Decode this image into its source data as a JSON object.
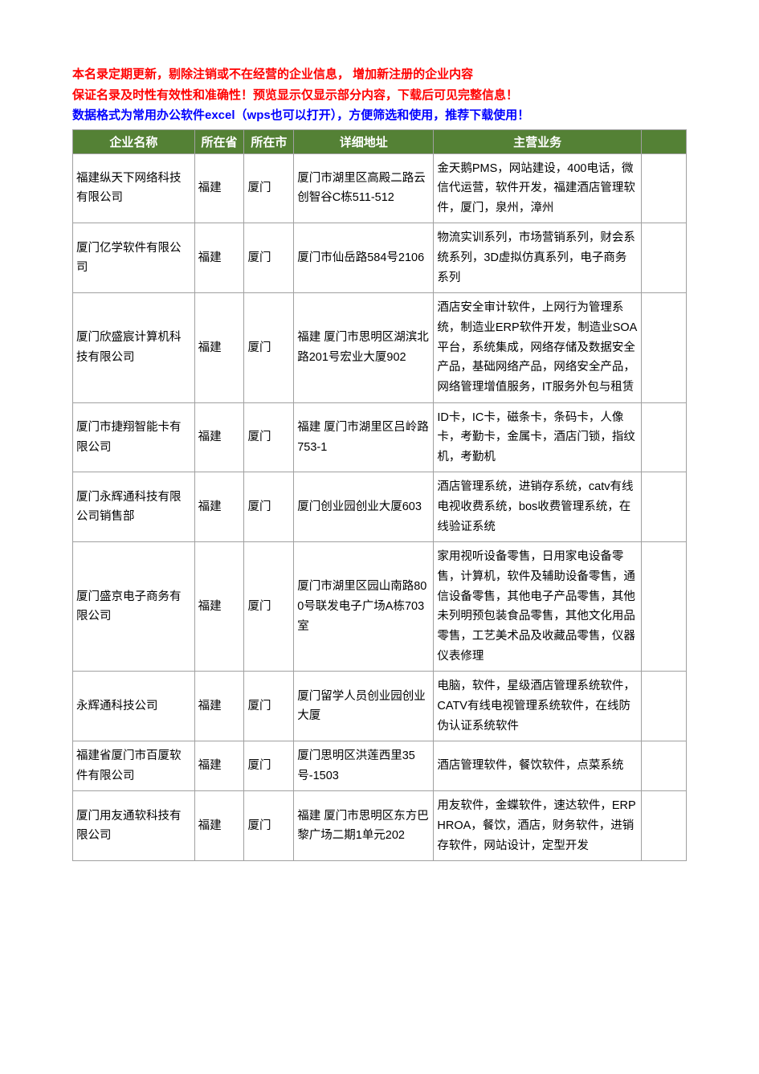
{
  "intro": {
    "line1": "本名录定期更新，剔除注销或不在经营的企业信息， 增加新注册的企业内容",
    "line2": "保证名录及时性有效性和准确性！预览显示仅显示部分内容，下载后可见完整信息！",
    "line3": "数据格式为常用办公软件excel（wps也可以打开），方便筛选和使用，推荐下载使用！"
  },
  "header_color": "#548135",
  "header_text_color": "#ffffff",
  "border_color": "#a0a0a0",
  "columns": [
    "企业名称",
    "所在省",
    "所在市",
    "详细地址",
    "主营业务",
    ""
  ],
  "rows": [
    {
      "name": "福建纵天下网络科技有限公司",
      "province": "福建",
      "city": "厦门",
      "address": "厦门市湖里区高殿二路云创智谷C栋511-512",
      "business": "金天鹅PMS，网站建设，400电话，微信代运营，软件开发，福建酒店管理软件，厦门，泉州，漳州"
    },
    {
      "name": "厦门亿学软件有限公司",
      "province": "福建",
      "city": "厦门",
      "address": "厦门市仙岳路584号2106",
      "business": "物流实训系列，市场营销系列，财会系统系列，3D虚拟仿真系列，电子商务系列"
    },
    {
      "name": "厦门欣盛宸计算机科技有限公司",
      "province": "福建",
      "city": "厦门",
      "address": "福建 厦门市思明区湖滨北路201号宏业大厦902",
      "business": "酒店安全审计软件，上网行为管理系统，制造业ERP软件开发，制造业SOA平台，系统集成，网络存储及数据安全产品，基础网络产品，网络安全产品，网络管理增值服务，IT服务外包与租赁"
    },
    {
      "name": "厦门市捷翔智能卡有限公司",
      "province": "福建",
      "city": "厦门",
      "address": "福建 厦门市湖里区吕岭路753-1",
      "business": "ID卡，IC卡，磁条卡，条码卡，人像卡，考勤卡，金属卡，酒店门锁，指纹机，考勤机"
    },
    {
      "name": "厦门永辉通科技有限公司销售部",
      "province": "福建",
      "city": "厦门",
      "address": "厦门创业园创业大厦603",
      "business": "酒店管理系统，进销存系统，catv有线电视收费系统，bos收费管理系统，在线验证系统"
    },
    {
      "name": "厦门盛京电子商务有限公司",
      "province": "福建",
      "city": "厦门",
      "address": "厦门市湖里区园山南路800号联发电子广场A栋703室",
      "business": "家用视听设备零售，日用家电设备零售，计算机，软件及辅助设备零售，通信设备零售，其他电子产品零售，其他未列明预包装食品零售，其他文化用品零售，工艺美术品及收藏品零售，仪器仪表修理"
    },
    {
      "name": "永辉通科技公司",
      "province": "福建",
      "city": "厦门",
      "address": "厦门留学人员创业园创业大厦",
      "business": "电脑，软件，星级酒店管理系统软件，CATV有线电视管理系统软件，在线防伪认证系统软件"
    },
    {
      "name": "福建省厦门市百厦软件有限公司",
      "province": "福建",
      "city": "厦门",
      "address": "厦门思明区洪莲西里35号-1503",
      "business": "酒店管理软件，餐饮软件，点菜系统"
    },
    {
      "name": "厦门用友通软科技有限公司",
      "province": "福建",
      "city": "厦门",
      "address": "福建 厦门市思明区东方巴黎广场二期1单元202",
      "business": "用友软件，金蝶软件，速达软件，ERPHROA，餐饮，酒店，财务软件，进销存软件，网站设计，定型开发"
    }
  ]
}
